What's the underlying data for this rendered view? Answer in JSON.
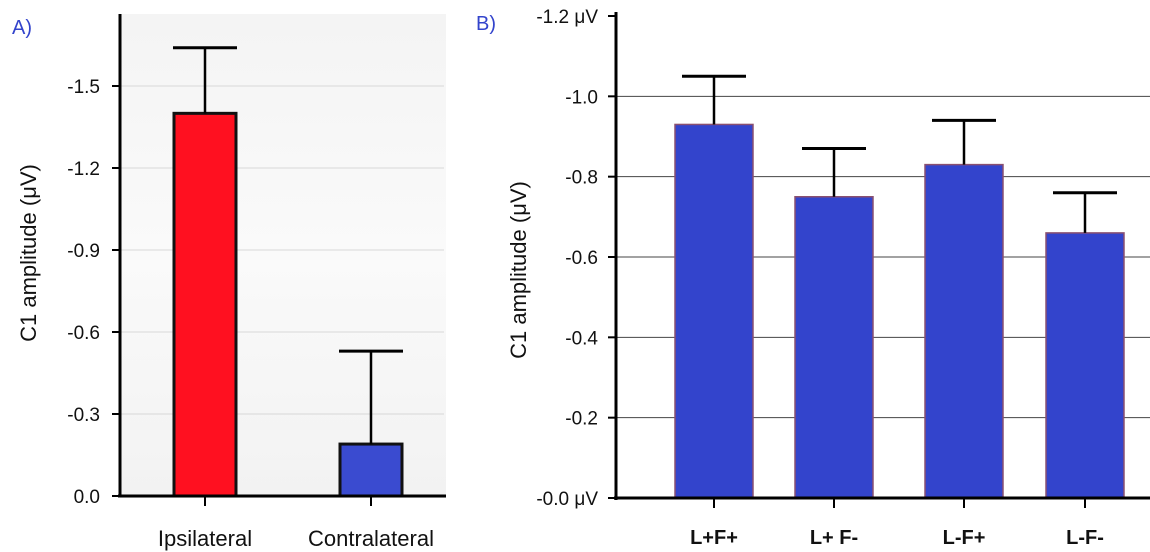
{
  "chart_data": [
    {
      "panel_label": "A)",
      "type": "bar",
      "categories": [
        "Ipsilateral",
        "Contralateral"
      ],
      "values": [
        -1.4,
        -0.19
      ],
      "error": [
        0.24,
        0.34
      ],
      "colors": [
        "#ff1020",
        "#3a4bd0"
      ],
      "ylabel": "C1 amplitude (μV)",
      "ylim": [
        0,
        -1.5
      ],
      "yticks": [
        0,
        -0.3,
        -0.6,
        -0.9,
        -1.2,
        -1.5
      ],
      "ytick_labels": [
        "0.0",
        "-0.3",
        "-0.6",
        "-0.9",
        "-1.2",
        "-1.5"
      ],
      "grid": true
    },
    {
      "panel_label": "B)",
      "type": "bar",
      "categories": [
        "L+F+",
        "L+ F-",
        "L-F+",
        "L-F-"
      ],
      "values": [
        -0.93,
        -0.75,
        -0.83,
        -0.66
      ],
      "error": [
        0.12,
        0.12,
        0.11,
        0.1
      ],
      "colors": [
        "#3344cc",
        "#3344cc",
        "#3344cc",
        "#3344cc"
      ],
      "ylabel": "C1 amplitude (μV)",
      "ylim": [
        0,
        -1.2
      ],
      "yticks": [
        0,
        -0.2,
        -0.4,
        -0.6,
        -0.8,
        -1.0,
        -1.2
      ],
      "ytick_labels": [
        "-0.0 μV",
        "-0.2",
        "-0.4",
        "-0.6",
        "-0.8",
        "-1.0",
        "-1.2 μV"
      ],
      "grid": true
    }
  ]
}
